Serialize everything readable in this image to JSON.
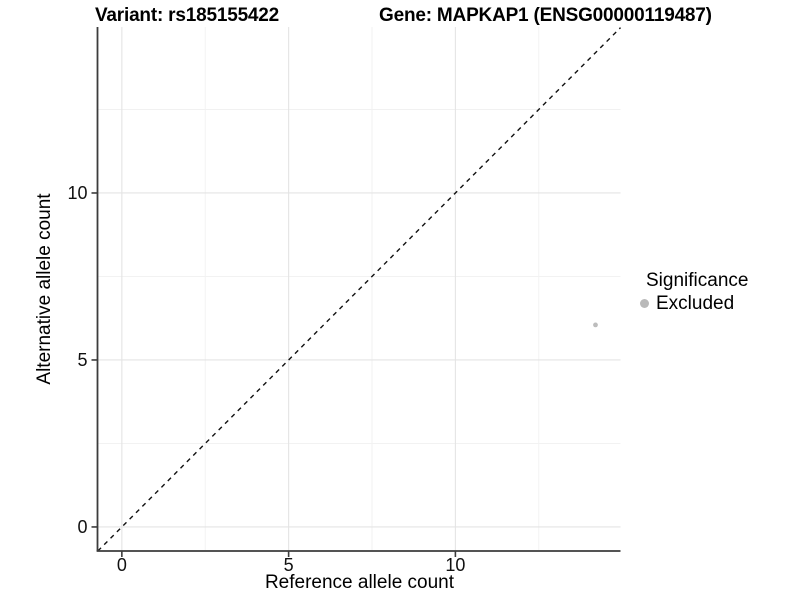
{
  "title": {
    "left": "Variant: rs185155422",
    "right": "Gene: MAPKAP1 (ENSG00000119487)"
  },
  "axes": {
    "x_label": "Reference allele count",
    "y_label": "Alternative allele count"
  },
  "legend": {
    "title": "Significance",
    "items": [
      {
        "label": "Excluded",
        "color": "#b9b9b9"
      }
    ]
  },
  "colors": {
    "background": "#ffffff",
    "grid_major": "#e4e4e4",
    "grid_minor": "#f1f1f1",
    "axis_line": "#3c3c3c",
    "tick_mark": "#3c3c3c",
    "identity_line": "#111111",
    "point": "#bdbdbd",
    "text": "#000000"
  },
  "chart_data": {
    "type": "scatter",
    "title": "Variant: rs185155422    Gene: MAPKAP1 (ENSG00000119487)",
    "xlabel": "Reference allele count",
    "ylabel": "Alternative allele count",
    "xlim": [
      -0.73,
      14.95
    ],
    "ylim": [
      -0.72,
      14.97
    ],
    "x_ticks": [
      0,
      5,
      10
    ],
    "y_ticks": [
      0,
      5,
      10
    ],
    "x_minor": [
      2.5,
      7.5,
      12.5
    ],
    "y_minor": [
      2.5,
      7.5,
      12.5
    ],
    "grid": "major+minor",
    "legend_position": "right",
    "reference_line": {
      "type": "identity y=x",
      "style": "dashed",
      "color": "#111111"
    },
    "series": [
      {
        "name": "Excluded",
        "color": "#bdbdbd",
        "point_radius": 2.4,
        "points": [
          {
            "x": 14.2,
            "y": 6.05
          }
        ]
      }
    ]
  }
}
